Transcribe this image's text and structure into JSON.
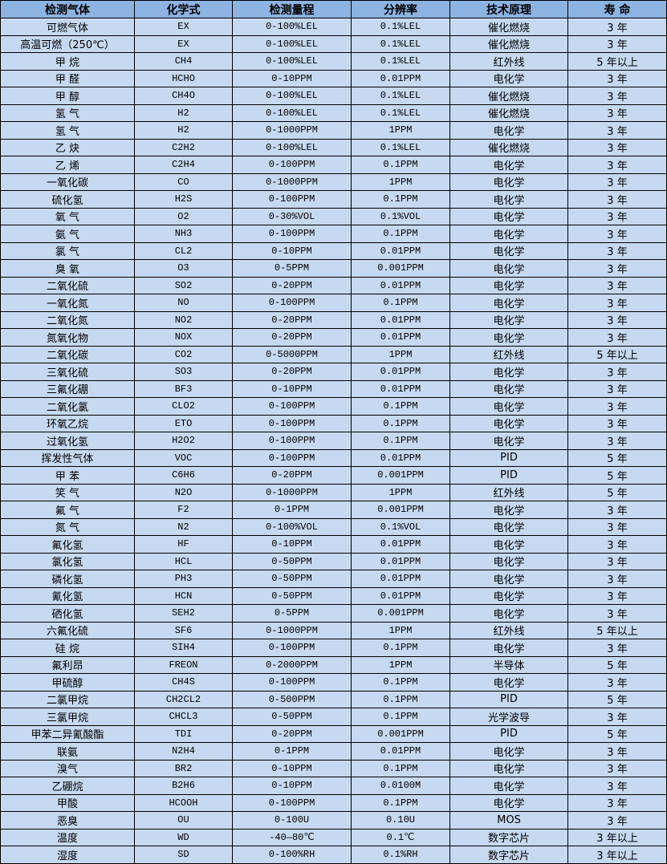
{
  "colors": {
    "header_bg": "#8DB3E2",
    "row_bg": "#C6D9F1",
    "border": "#000000"
  },
  "headers": [
    "检测气体",
    "化学式",
    "检测量程",
    "分辨率",
    "技术原理",
    "寿 命"
  ],
  "rows": [
    [
      "可燃气体",
      "EX",
      "0-100%LEL",
      "0.1%LEL",
      "催化燃烧",
      "3 年"
    ],
    [
      "高温可燃（250℃）",
      "EX",
      "0-100%LEL",
      "0.1%LEL",
      "催化燃烧",
      "3 年"
    ],
    [
      "甲 烷",
      "CH4",
      "0-100%LEL",
      "0.1%LEL",
      "红外线",
      "5 年以上"
    ],
    [
      "甲 醛",
      "HCHO",
      "0-10PPM",
      "0.01PPM",
      "电化学",
      "3 年"
    ],
    [
      "甲 醇",
      "CH4O",
      "0-100%LEL",
      "0.1%LEL",
      "催化燃烧",
      "3 年"
    ],
    [
      "氢 气",
      "H2",
      "0-100%LEL",
      "0.1%LEL",
      "催化燃烧",
      "3 年"
    ],
    [
      "氢 气",
      "H2",
      "0-1000PPM",
      "1PPM",
      "电化学",
      "3 年"
    ],
    [
      "乙 炔",
      "C2H2",
      "0-100%LEL",
      "0.1%LEL",
      "催化燃烧",
      "3 年"
    ],
    [
      "乙 烯",
      "C2H4",
      "0-100PPM",
      "0.1PPM",
      "电化学",
      "3 年"
    ],
    [
      "一氧化碳",
      "CO",
      "0-1000PPM",
      "1PPM",
      "电化学",
      "3 年"
    ],
    [
      "硫化氢",
      "H2S",
      "0-100PPM",
      "0.1PPM",
      "电化学",
      "3 年"
    ],
    [
      "氧 气",
      "O2",
      "0-30%VOL",
      "0.1%VOL",
      "电化学",
      "3 年"
    ],
    [
      "氨 气",
      "NH3",
      "0-100PPM",
      "0.1PPM",
      "电化学",
      "3 年"
    ],
    [
      "氯 气",
      "CL2",
      "0-10PPM",
      "0.01PPM",
      "电化学",
      "3 年"
    ],
    [
      "臭 氧",
      "O3",
      "0-5PPM",
      "0.001PPM",
      "电化学",
      "3 年"
    ],
    [
      "二氧化硫",
      "SO2",
      "0-20PPM",
      "0.01PPM",
      "电化学",
      "3 年"
    ],
    [
      "一氧化氮",
      "NO",
      "0-100PPM",
      "0.1PPM",
      "电化学",
      "3 年"
    ],
    [
      "二氧化氮",
      "NO2",
      "0-20PPM",
      "0.01PPM",
      "电化学",
      "3 年"
    ],
    [
      "氮氧化物",
      "NOX",
      "0-20PPM",
      "0.01PPM",
      "电化学",
      "3 年"
    ],
    [
      "二氧化碳",
      "CO2",
      "0-5000PPM",
      "1PPM",
      "红外线",
      "5 年以上"
    ],
    [
      "三氧化硫",
      "SO3",
      "0-20PPM",
      "0.01PPM",
      "电化学",
      "3 年"
    ],
    [
      "三氟化硼",
      "BF3",
      "0-10PPM",
      "0.01PPM",
      "电化学",
      "3 年"
    ],
    [
      "二氧化氯",
      "CLO2",
      "0-100PPM",
      "0.1PPM",
      "电化学",
      "3 年"
    ],
    [
      "环氧乙烷",
      "ETO",
      "0-100PPM",
      "0.1PPM",
      "电化学",
      "3 年"
    ],
    [
      "过氧化氢",
      "H2O2",
      "0-100PPM",
      "0.1PPM",
      "电化学",
      "3 年"
    ],
    [
      "挥发性气体",
      "VOC",
      "0-100PPM",
      "0.01PPM",
      "PID",
      "5 年"
    ],
    [
      "甲 苯",
      "C6H6",
      "0-20PPM",
      "0.001PPM",
      "PID",
      "5 年"
    ],
    [
      "笑 气",
      "N2O",
      "0-1000PPM",
      "1PPM",
      "红外线",
      "5 年"
    ],
    [
      "氟 气",
      "F2",
      "0-1PPM",
      "0.001PPM",
      "电化学",
      "3 年"
    ],
    [
      "氮 气",
      "N2",
      "0-100%VOL",
      "0.1%VOL",
      "电化学",
      "3 年"
    ],
    [
      "氟化氢",
      "HF",
      "0-10PPM",
      "0.01PPM",
      "电化学",
      "3 年"
    ],
    [
      "氯化氢",
      "HCL",
      "0-50PPM",
      "0.01PPM",
      "电化学",
      "3 年"
    ],
    [
      "磷化氢",
      "PH3",
      "0-50PPM",
      "0.01PPM",
      "电化学",
      "3 年"
    ],
    [
      "氰化氢",
      "HCN",
      "0-50PPM",
      "0.01PPM",
      "电化学",
      "3 年"
    ],
    [
      "硒化氢",
      "SEH2",
      "0-5PPM",
      "0.001PPM",
      "电化学",
      "3 年"
    ],
    [
      "六氟化硫",
      "SF6",
      "0-1000PPM",
      "1PPM",
      "红外线",
      "5 年以上"
    ],
    [
      "硅 烷",
      "SIH4",
      "0-100PPM",
      "0.1PPM",
      "电化学",
      "3 年"
    ],
    [
      "氟利昂",
      "FREON",
      "0-2000PPM",
      "1PPM",
      "半导体",
      "5 年"
    ],
    [
      "甲硫醇",
      "CH4S",
      "0-100PPM",
      "0.1PPM",
      "电化学",
      "3 年"
    ],
    [
      "二氯甲烷",
      "CH2CL2",
      "0-500PPM",
      "0.1PPM",
      "PID",
      "5 年"
    ],
    [
      "三氯甲烷",
      "CHCL3",
      "0-50PPM",
      "0.1PPM",
      "光学波导",
      "3 年"
    ],
    [
      "甲苯二异氰酸酯",
      "TDI",
      "0-20PPM",
      "0.001PPM",
      "PID",
      "5 年"
    ],
    [
      "联氨",
      "N2H4",
      "0-1PPM",
      "0.01PPM",
      "电化学",
      "3 年"
    ],
    [
      "溴气",
      "BR2",
      "0-10PPM",
      "0.1PPM",
      "电化学",
      "3 年"
    ],
    [
      "乙硼烷",
      "B2H6",
      "0-10PPM",
      "0.0100M",
      "电化学",
      "3 年"
    ],
    [
      "甲酸",
      "HCOOH",
      "0-100PPM",
      "0.1PPM",
      "电化学",
      "3 年"
    ],
    [
      "恶臭",
      "OU",
      "0-100U",
      "0.10U",
      "MOS",
      "3 年"
    ],
    [
      "温度",
      "WD",
      "-40—80℃",
      "0.1℃",
      "数字芯片",
      "3 年以上"
    ],
    [
      "湿度",
      "SD",
      "0-100%RH",
      "0.1%RH",
      "数字芯片",
      "3 年以上"
    ]
  ]
}
